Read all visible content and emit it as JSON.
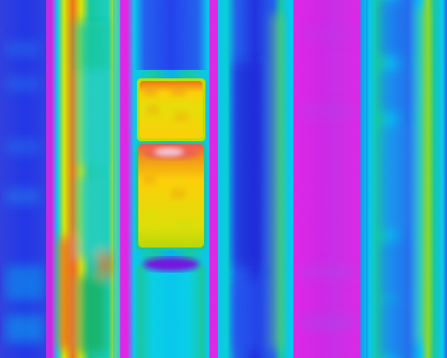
{
  "image": {
    "kind": "thermal-camera-image",
    "palette": "iron-rainbow",
    "palette_colors": {
      "coldest": "#3b0fd6",
      "cold": "#1c3cf0",
      "cool": "#00c8f0",
      "mid": "#10c8a0",
      "warm": "#d8e800",
      "hot": "#ffd000",
      "hotter": "#f06010",
      "hottest": "#f0f0f0",
      "background_magenta": "#e020e8"
    }
  }
}
